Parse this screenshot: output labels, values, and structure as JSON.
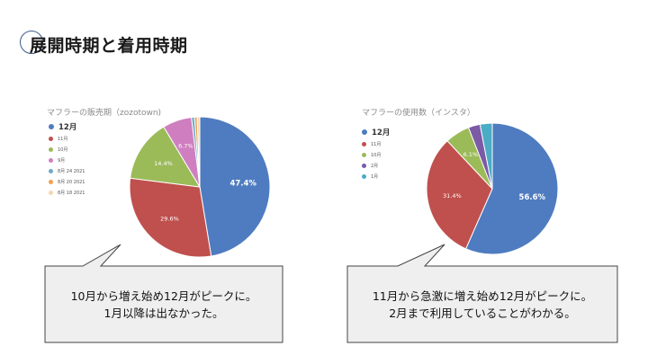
{
  "slide": {
    "title": "展開時期と着用時期"
  },
  "charts": [
    {
      "title": "マフラーの販売期（zozotown)",
      "legend": [
        {
          "label": "12月",
          "color": "#4f7cc0",
          "main": true
        },
        {
          "label": "11月",
          "color": "#c0504d",
          "main": false
        },
        {
          "label": "10月",
          "color": "#9bbb59",
          "main": false
        },
        {
          "label": "9月",
          "color": "#cf7fbf",
          "main": false
        },
        {
          "label": "8月 24 2021",
          "color": "#6fa9c9",
          "main": false
        },
        {
          "label": "8月 20 2021",
          "color": "#f0a050",
          "main": false
        },
        {
          "label": "8月 18 2021",
          "color": "#f5d7b0",
          "main": false
        }
      ],
      "callout": {
        "line1": "10月から増え始め12月がピークに。",
        "line2": "1月以降は出なかった。"
      }
    },
    {
      "title": "マフラーの使用数（インスタ）",
      "legend": [
        {
          "label": "12月",
          "color": "#4f7cc0",
          "main": true
        },
        {
          "label": "11月",
          "color": "#c0504d",
          "main": false
        },
        {
          "label": "10月",
          "color": "#9bbb59",
          "main": false
        },
        {
          "label": "2月",
          "color": "#7b5aa6",
          "main": false
        },
        {
          "label": "1月",
          "color": "#4bacc6",
          "main": false
        }
      ],
      "callout": {
        "line1": "11月から急激に増え始め12月がピークに。",
        "line2": "2月まで利用していることがわかる。"
      }
    }
  ],
  "chart_data": [
    {
      "type": "pie",
      "title": "マフラーの販売期（zozotown)",
      "slices": [
        {
          "label": "12月",
          "value": 47.4,
          "display": "47.4%",
          "color": "#4f7cc0"
        },
        {
          "label": "11月",
          "value": 29.6,
          "display": "29.6%",
          "color": "#c0504d"
        },
        {
          "label": "10月",
          "value": 14.4,
          "display": "14.4%",
          "color": "#9bbb59"
        },
        {
          "label": "9月",
          "value": 6.7,
          "display": "6.7%",
          "color": "#cf7fbf"
        },
        {
          "label": "8月 24 2021",
          "value": 0.7,
          "display": "",
          "color": "#6fa9c9"
        },
        {
          "label": "8月 20 2021",
          "value": 0.6,
          "display": "",
          "color": "#f0a050"
        },
        {
          "label": "8月 18 2021",
          "value": 0.6,
          "display": "",
          "color": "#f5d7b0"
        }
      ]
    },
    {
      "type": "pie",
      "title": "マフラーの使用数（インスタ）",
      "slices": [
        {
          "label": "12月",
          "value": 56.6,
          "display": "56.6%",
          "color": "#4f7cc0"
        },
        {
          "label": "11月",
          "value": 31.4,
          "display": "31.4%",
          "color": "#c0504d"
        },
        {
          "label": "10月",
          "value": 6.1,
          "display": "6.1%",
          "color": "#9bbb59"
        },
        {
          "label": "2月",
          "value": 2.9,
          "display": "",
          "color": "#7b5aa6"
        },
        {
          "label": "1月",
          "value": 3.0,
          "display": "",
          "color": "#4bacc6"
        }
      ]
    }
  ]
}
